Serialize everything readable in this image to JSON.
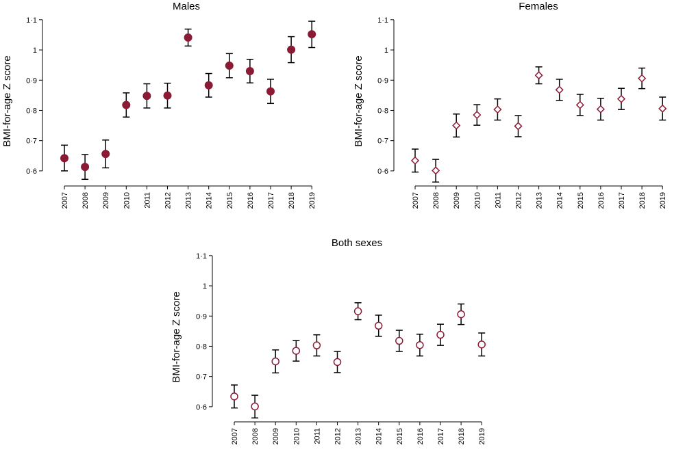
{
  "chart_data": [
    {
      "type": "scatter",
      "title": "Males",
      "ylabel": "BMI-for-age Z score",
      "xlabel": "",
      "ylim": [
        0.55,
        1.12
      ],
      "yticks": [
        "0·6",
        "0·7",
        "0·8",
        "0·9",
        "1",
        "1·1"
      ],
      "ytick_values": [
        0.6,
        0.7,
        0.8,
        0.9,
        1.0,
        1.1
      ],
      "marker": "filled-circle",
      "color": "#8b1a35",
      "categories": [
        "2007",
        "2008",
        "2009",
        "2010",
        "2011",
        "2012",
        "2013",
        "2014",
        "2015",
        "2016",
        "2017",
        "2018",
        "2019"
      ],
      "values": [
        0.642,
        0.613,
        0.656,
        0.818,
        0.848,
        0.849,
        1.041,
        0.883,
        0.948,
        0.93,
        0.863,
        1.001,
        1.052
      ],
      "lower": [
        0.6,
        0.572,
        0.61,
        0.778,
        0.808,
        0.808,
        1.013,
        0.844,
        0.908,
        0.891,
        0.823,
        0.958,
        1.008
      ],
      "upper": [
        0.685,
        0.654,
        0.702,
        0.858,
        0.888,
        0.89,
        1.069,
        0.922,
        0.988,
        0.969,
        0.903,
        1.044,
        1.095
      ]
    },
    {
      "type": "scatter",
      "title": "Females",
      "ylabel": "BMI-for-age Z score",
      "xlabel": "",
      "ylim": [
        0.55,
        1.12
      ],
      "yticks": [
        "0·6",
        "0·7",
        "0·8",
        "0·9",
        "1",
        "1·1"
      ],
      "ytick_values": [
        0.6,
        0.7,
        0.8,
        0.9,
        1.0,
        1.1
      ],
      "marker": "open-diamond",
      "color": "#8b1a35",
      "categories": [
        "2007",
        "2008",
        "2009",
        "2010",
        "2011",
        "2012",
        "2013",
        "2014",
        "2015",
        "2016",
        "2017",
        "2018",
        "2019"
      ],
      "values": [
        0.634,
        0.601,
        0.75,
        0.785,
        0.803,
        0.748,
        0.916,
        0.868,
        0.818,
        0.804,
        0.838,
        0.906,
        0.806
      ],
      "lower": [
        0.596,
        0.563,
        0.712,
        0.751,
        0.768,
        0.713,
        0.888,
        0.833,
        0.783,
        0.768,
        0.803,
        0.872,
        0.768
      ],
      "upper": [
        0.672,
        0.638,
        0.788,
        0.819,
        0.838,
        0.783,
        0.944,
        0.903,
        0.853,
        0.84,
        0.873,
        0.94,
        0.844
      ]
    },
    {
      "type": "scatter",
      "title": "Both sexes",
      "ylabel": "BMI-for-age Z score",
      "xlabel": "",
      "ylim": [
        0.55,
        1.12
      ],
      "yticks": [
        "0·6",
        "0·7",
        "0·8",
        "0·9",
        "1",
        "1·1"
      ],
      "ytick_values": [
        0.6,
        0.7,
        0.8,
        0.9,
        1.0,
        1.1
      ],
      "marker": "open-circle",
      "color": "#8b1a35",
      "categories": [
        "2007",
        "2008",
        "2009",
        "2010",
        "2011",
        "2012",
        "2013",
        "2014",
        "2015",
        "2016",
        "2017",
        "2018",
        "2019"
      ],
      "values": [
        0.634,
        0.601,
        0.75,
        0.785,
        0.803,
        0.748,
        0.916,
        0.868,
        0.818,
        0.804,
        0.838,
        0.906,
        0.806
      ],
      "lower": [
        0.596,
        0.563,
        0.712,
        0.751,
        0.768,
        0.713,
        0.888,
        0.833,
        0.783,
        0.768,
        0.803,
        0.872,
        0.768
      ],
      "upper": [
        0.672,
        0.638,
        0.788,
        0.819,
        0.838,
        0.783,
        0.944,
        0.903,
        0.853,
        0.84,
        0.873,
        0.94,
        0.844
      ]
    }
  ]
}
